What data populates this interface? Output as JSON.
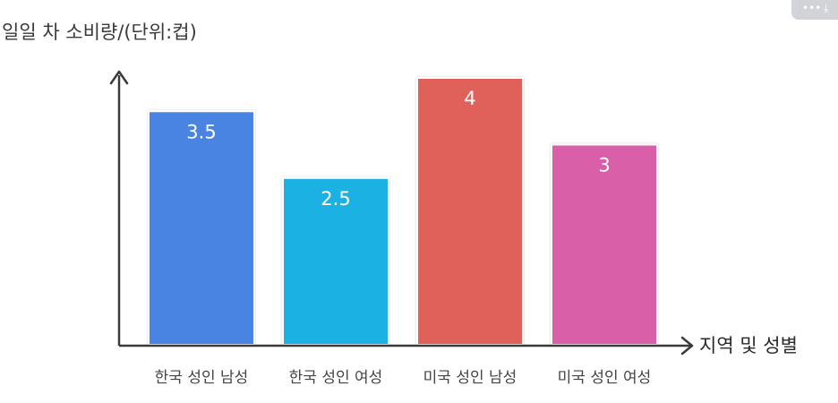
{
  "chart_data": {
    "type": "bar",
    "ylabel": "일일 차 소비량/(단위:컵)",
    "xlabel": "지역 및 성별",
    "categories": [
      "한국 성인 남성",
      "한국 성인 여성",
      "미국 성인 남성",
      "미국 성인 여성"
    ],
    "values": [
      3.5,
      2.5,
      4,
      3
    ],
    "data_labels": [
      "3.5",
      "2.5",
      "4",
      "3"
    ],
    "colors": [
      "#4a84e3",
      "#1bb1e3",
      "#e0605a",
      "#d95fa8"
    ],
    "ylim": [
      0,
      4.2
    ],
    "grid": false,
    "legend": "none"
  },
  "toolbar": {
    "more_icon": "more-icon",
    "download_icon": "download-icon"
  }
}
